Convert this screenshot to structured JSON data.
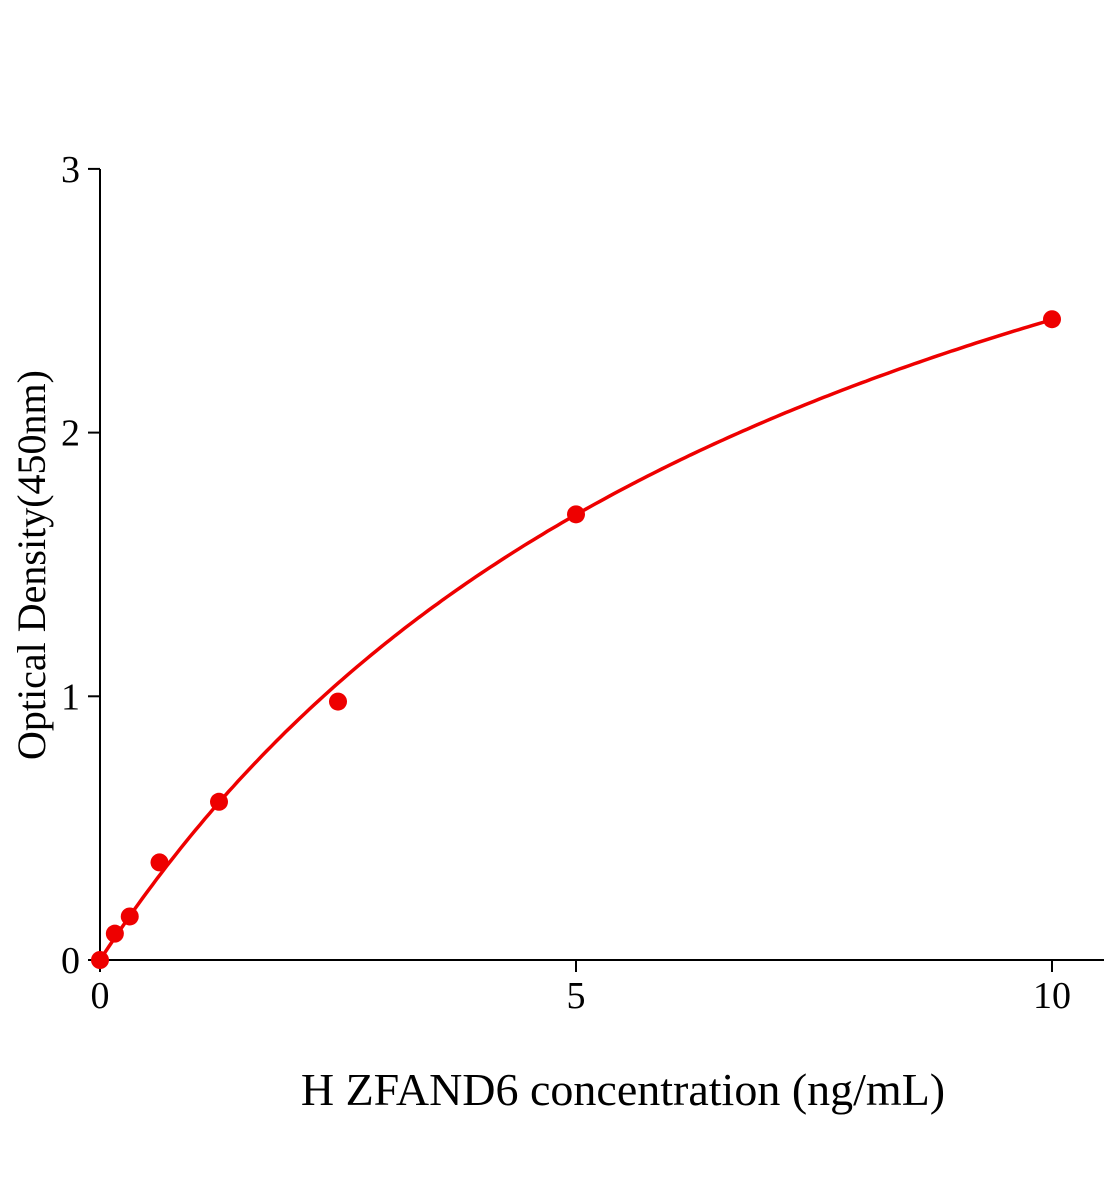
{
  "chart_data": {
    "type": "scatter",
    "title": "",
    "xlabel": "H ZFAND6 concentration (ng/mL)",
    "ylabel": "Optical Density(450nm)",
    "xlim": [
      0,
      10.5
    ],
    "ylim": [
      0,
      3
    ],
    "xticks": [
      "0",
      "5",
      "10"
    ],
    "yticks": [
      "0",
      "1",
      "2",
      "3"
    ],
    "grid": false,
    "series": [
      {
        "x": [
          0,
          0.156,
          0.3125,
          0.625,
          1.25,
          2.5,
          5,
          10
        ],
        "y": [
          0.0,
          0.1,
          0.165,
          0.37,
          0.6,
          0.98,
          1.69,
          2.43
        ],
        "marker": "circle",
        "fit_line": true
      }
    ],
    "colors": {
      "series": "#ee0000",
      "axis": "#000000"
    }
  }
}
